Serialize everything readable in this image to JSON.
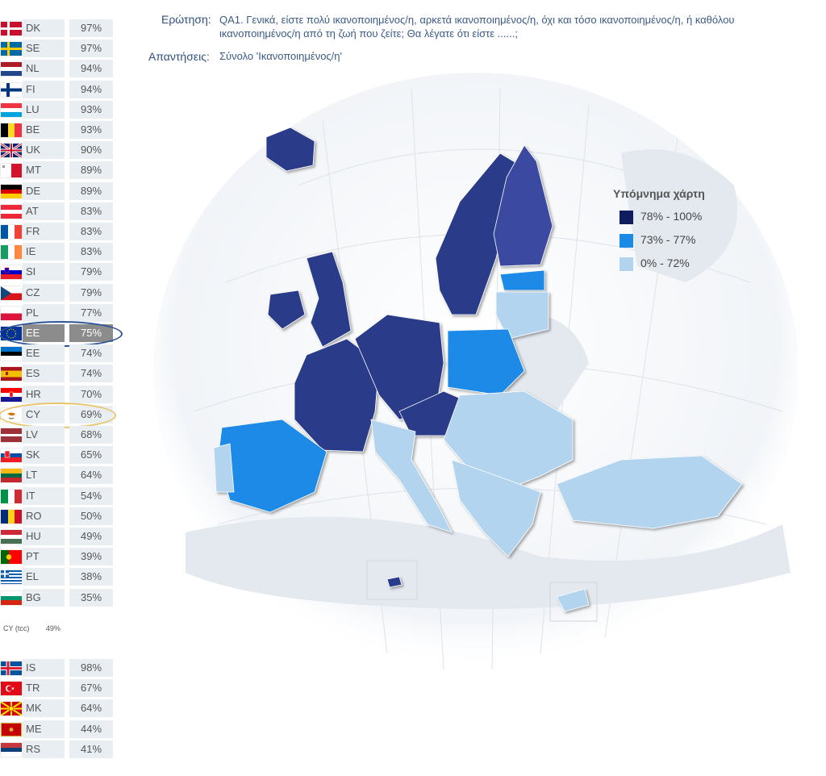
{
  "question": {
    "label": "Ερώτηση:",
    "text": "QA1. Γενικά, είστε πολύ ικανοποιημένος/η, αρκετά ικανοποιημένος/η, όχι και τόσο ικανοποιημένος/η, ή καθόλου ικανοποιημένος/η από τη ζωή που ζείτε; Θα λέγατε ότι είστε ......;"
  },
  "answers": {
    "label": "Απαντήσεις:",
    "text": "Σύνολο 'Ικανοποιημένος/η'"
  },
  "legend": {
    "title": "Υπόμνημα χάρτη",
    "items": [
      {
        "label": "78% - 100%",
        "color": "#0f1c5f"
      },
      {
        "label": "73% - 77%",
        "color": "#1a8ae6"
      },
      {
        "label": "0% - 72%",
        "color": "#b3d4ee"
      }
    ]
  },
  "countries": [
    {
      "code": "DK",
      "value": "97%",
      "flag": "dk-flag-icon"
    },
    {
      "code": "SE",
      "value": "97%",
      "flag": "se-flag-icon"
    },
    {
      "code": "NL",
      "value": "94%",
      "flag": "nl-flag-icon"
    },
    {
      "code": "FI",
      "value": "94%",
      "flag": "fi-flag-icon"
    },
    {
      "code": "LU",
      "value": "93%",
      "flag": "lu-flag-icon"
    },
    {
      "code": "BE",
      "value": "93%",
      "flag": "be-flag-icon"
    },
    {
      "code": "UK",
      "value": "90%",
      "flag": "uk-flag-icon"
    },
    {
      "code": "MT",
      "value": "89%",
      "flag": "mt-flag-icon"
    },
    {
      "code": "DE",
      "value": "89%",
      "flag": "de-flag-icon"
    },
    {
      "code": "AT",
      "value": "83%",
      "flag": "at-flag-icon"
    },
    {
      "code": "FR",
      "value": "83%",
      "flag": "fr-flag-icon"
    },
    {
      "code": "IE",
      "value": "83%",
      "flag": "ie-flag-icon"
    },
    {
      "code": "SI",
      "value": "79%",
      "flag": "si-flag-icon"
    },
    {
      "code": "CZ",
      "value": "79%",
      "flag": "cz-flag-icon"
    },
    {
      "code": "PL",
      "value": "77%",
      "flag": "pl-flag-icon"
    },
    {
      "code": "EE",
      "value": "75%",
      "flag": "eu-flag-icon",
      "highlight": true
    },
    {
      "code": "EE",
      "value": "74%",
      "flag": "ee-flag-icon"
    },
    {
      "code": "ES",
      "value": "74%",
      "flag": "es-flag-icon"
    },
    {
      "code": "HR",
      "value": "70%",
      "flag": "hr-flag-icon"
    },
    {
      "code": "CY",
      "value": "69%",
      "flag": "cy-flag-icon"
    },
    {
      "code": "LV",
      "value": "68%",
      "flag": "lv-flag-icon"
    },
    {
      "code": "SK",
      "value": "65%",
      "flag": "sk-flag-icon"
    },
    {
      "code": "LT",
      "value": "64%",
      "flag": "lt-flag-icon"
    },
    {
      "code": "IT",
      "value": "54%",
      "flag": "it-flag-icon"
    },
    {
      "code": "RO",
      "value": "50%",
      "flag": "ro-flag-icon"
    },
    {
      "code": "HU",
      "value": "49%",
      "flag": "hu-flag-icon"
    },
    {
      "code": "PT",
      "value": "39%",
      "flag": "pt-flag-icon"
    },
    {
      "code": "EL",
      "value": "38%",
      "flag": "el-flag-icon"
    },
    {
      "code": "BG",
      "value": "35%",
      "flag": "bg-flag-icon"
    }
  ],
  "note": {
    "code": "CY (tcc)",
    "value": "49%"
  },
  "candidates": [
    {
      "code": "IS",
      "value": "98%",
      "flag": "is-flag-icon"
    },
    {
      "code": "TR",
      "value": "67%",
      "flag": "tr-flag-icon"
    },
    {
      "code": "MK",
      "value": "64%",
      "flag": "mk-flag-icon"
    },
    {
      "code": "ME",
      "value": "44%",
      "flag": "me-flag-icon"
    },
    {
      "code": "RS",
      "value": "41%",
      "flag": "rs-flag-icon"
    }
  ]
}
